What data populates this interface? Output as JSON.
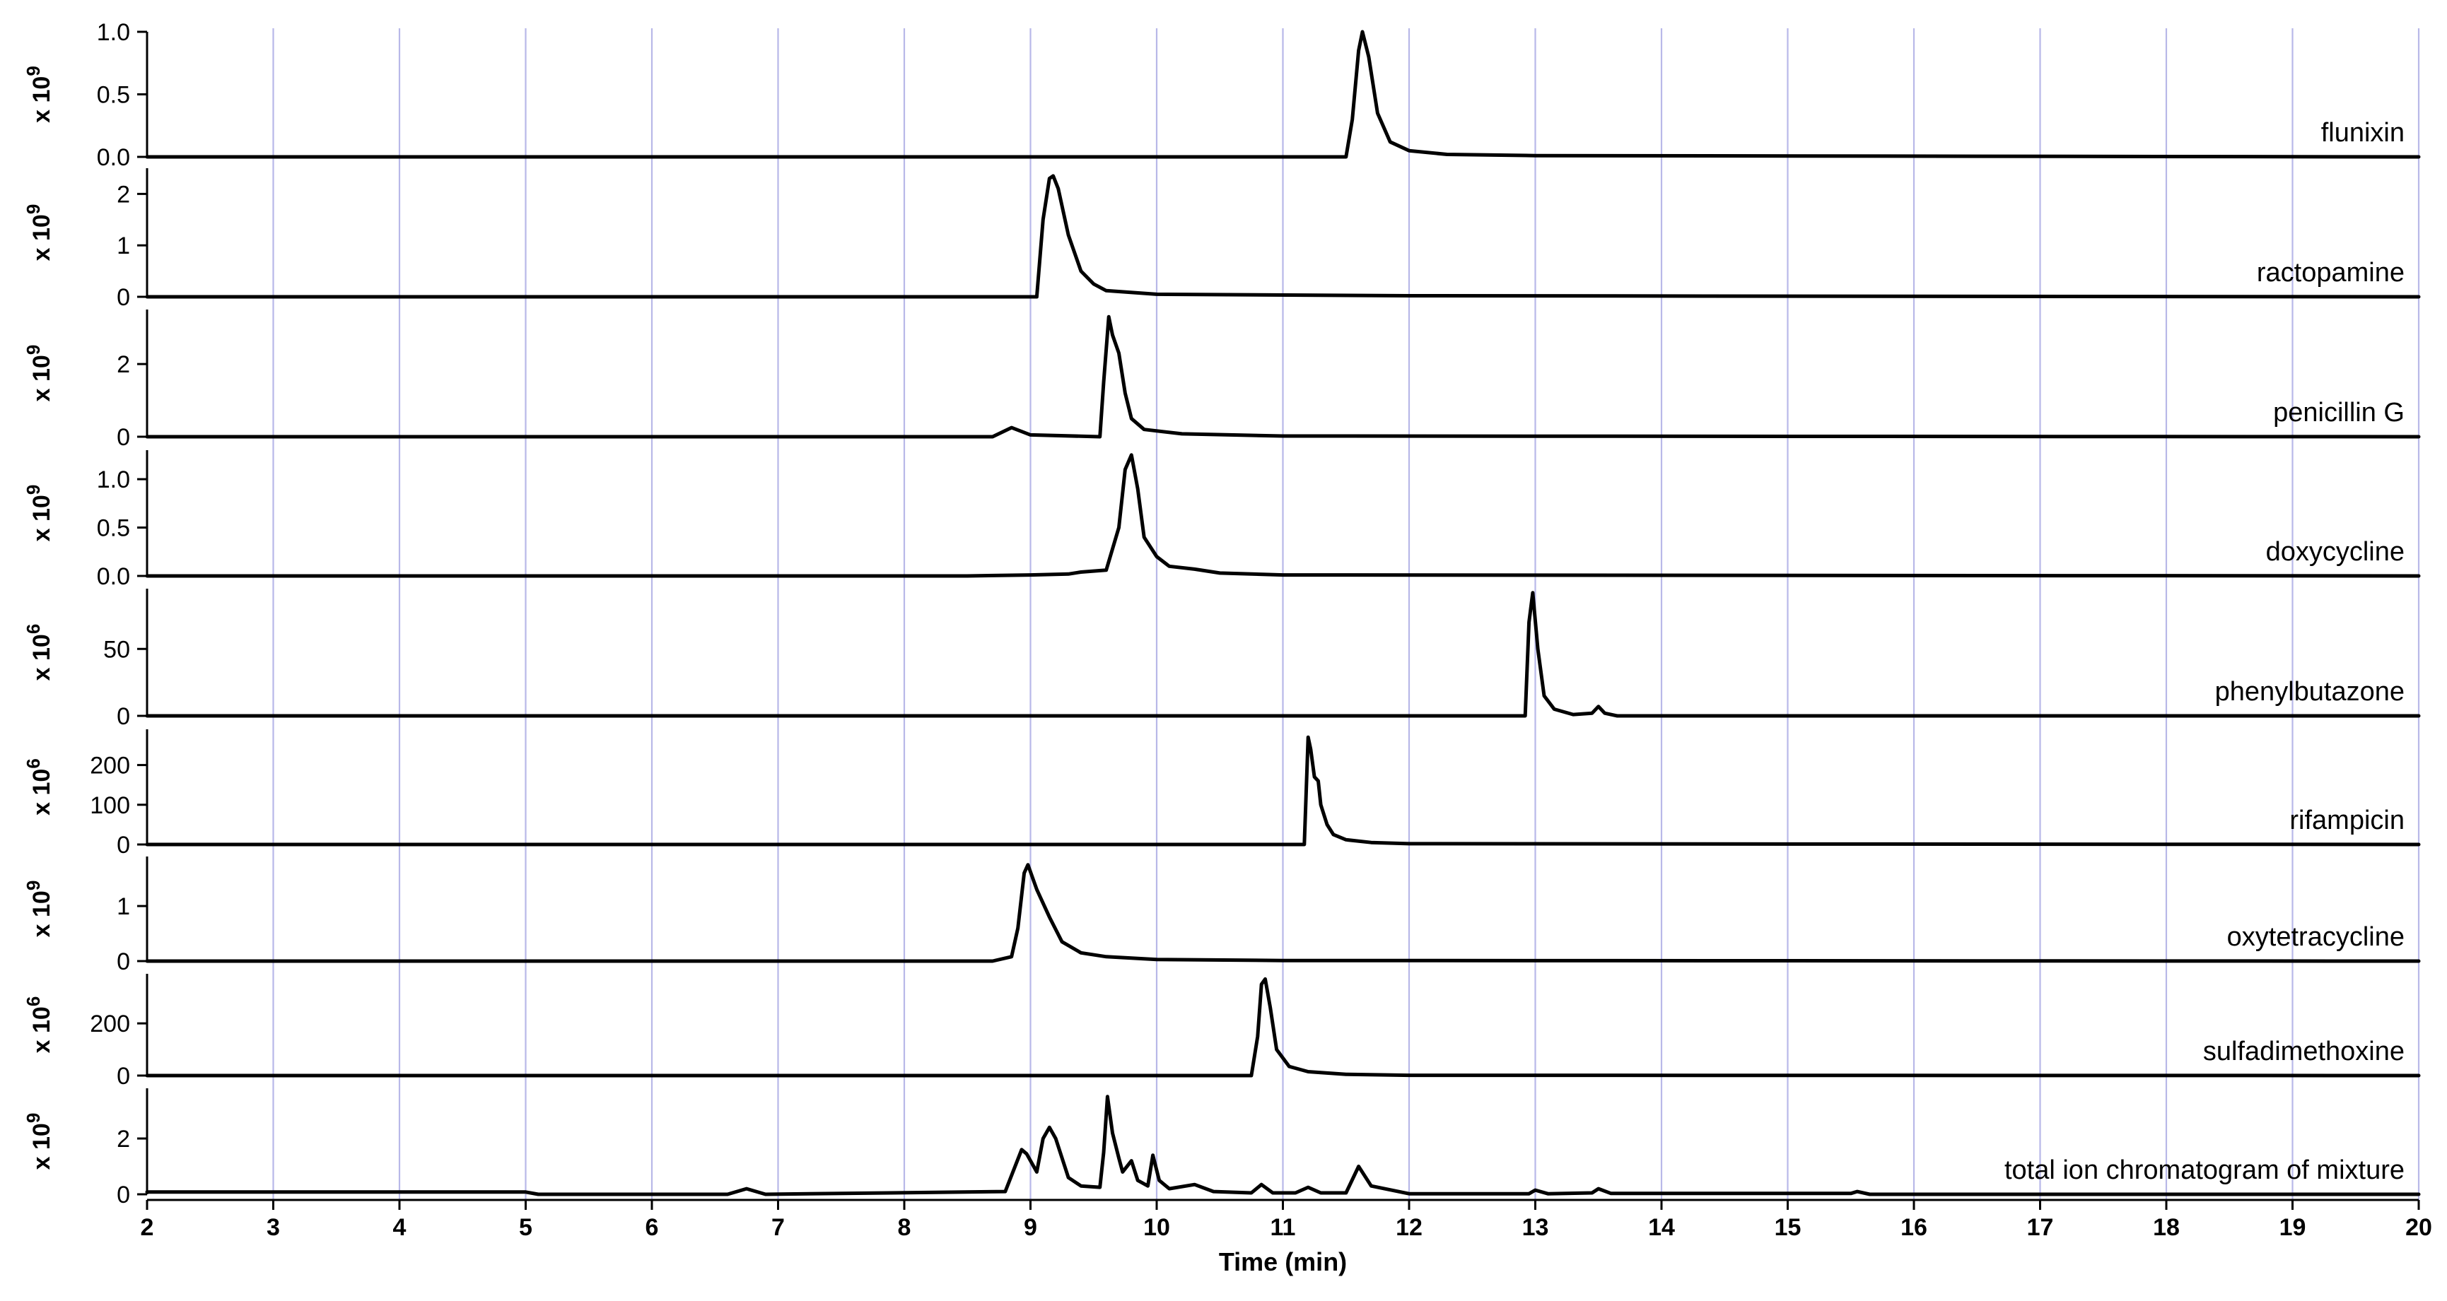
{
  "chart_data": {
    "type": "line",
    "xlabel": "Time (min)",
    "xlim": [
      2,
      20
    ],
    "x_ticks": [
      "2",
      "3",
      "4",
      "5",
      "6",
      "7",
      "8",
      "9",
      "10",
      "11",
      "12",
      "13",
      "14",
      "15",
      "16",
      "17",
      "18",
      "19",
      "20"
    ],
    "grid": "vertical",
    "colors": {
      "line": "#000000",
      "grid": "#b8b8e8",
      "axis": "#000000"
    },
    "panels": [
      {
        "name": "flunixin",
        "scale_label": "x 10",
        "scale_exp": "9",
        "ylim": [
          0,
          1.0
        ],
        "yticks": [
          "1.0",
          "0.5",
          "0.0"
        ],
        "series": {
          "x": [
            2.0,
            11.5,
            11.55,
            11.6,
            11.63,
            11.68,
            11.75,
            11.85,
            12.0,
            12.3,
            13.0,
            20.0
          ],
          "y": [
            0.0,
            0.0,
            0.3,
            0.85,
            1.0,
            0.8,
            0.35,
            0.12,
            0.05,
            0.02,
            0.01,
            0.0
          ]
        }
      },
      {
        "name": "ractopamine",
        "scale_label": "x 10",
        "scale_exp": "9",
        "ylim": [
          0,
          2.5
        ],
        "yticks": [
          "2",
          "1",
          "0"
        ],
        "series": {
          "x": [
            2.0,
            9.05,
            9.1,
            9.15,
            9.18,
            9.22,
            9.3,
            9.4,
            9.5,
            9.6,
            10.0,
            12.0,
            20.0
          ],
          "y": [
            0.0,
            0.0,
            1.5,
            2.3,
            2.35,
            2.1,
            1.2,
            0.5,
            0.25,
            0.12,
            0.05,
            0.02,
            0.0
          ]
        }
      },
      {
        "name": "penicillin G",
        "scale_label": "x 10",
        "scale_exp": "9",
        "ylim": [
          0,
          3.5
        ],
        "yticks": [
          "2",
          "0"
        ],
        "series": {
          "x": [
            2.0,
            8.7,
            8.85,
            9.0,
            9.55,
            9.58,
            9.62,
            9.65,
            9.7,
            9.75,
            9.8,
            9.9,
            10.2,
            11.0,
            20.0
          ],
          "y": [
            0.0,
            0.0,
            0.25,
            0.05,
            0.0,
            1.5,
            3.3,
            2.8,
            2.3,
            1.2,
            0.5,
            0.2,
            0.08,
            0.02,
            0.0
          ]
        }
      },
      {
        "name": "doxycycline",
        "scale_label": "x 10",
        "scale_exp": "9",
        "ylim": [
          0,
          1.3
        ],
        "yticks": [
          "1.0",
          "0.5",
          "0.0"
        ],
        "series": {
          "x": [
            2.0,
            8.5,
            9.0,
            9.3,
            9.4,
            9.6,
            9.7,
            9.75,
            9.8,
            9.85,
            9.9,
            10.0,
            10.1,
            10.3,
            10.5,
            11.0,
            20.0
          ],
          "y": [
            0.0,
            0.0,
            0.01,
            0.02,
            0.04,
            0.06,
            0.5,
            1.1,
            1.25,
            0.9,
            0.4,
            0.2,
            0.1,
            0.07,
            0.03,
            0.01,
            0.0
          ]
        }
      },
      {
        "name": "phenylbutazone",
        "scale_label": "x 10",
        "scale_exp": "6",
        "ylim": [
          0,
          95
        ],
        "yticks": [
          "50",
          "0"
        ],
        "series": {
          "x": [
            2.0,
            12.5,
            12.92,
            12.95,
            12.98,
            13.02,
            13.07,
            13.15,
            13.3,
            13.45,
            13.5,
            13.55,
            13.65,
            20.0
          ],
          "y": [
            0.0,
            0.0,
            0.0,
            70,
            92,
            50,
            15,
            5,
            1,
            2,
            7,
            2,
            0,
            0.0
          ]
        }
      },
      {
        "name": "rifampicin",
        "scale_label": "x 10",
        "scale_exp": "6",
        "ylim": [
          0,
          290
        ],
        "yticks": [
          "200",
          "100",
          "0"
        ],
        "series": {
          "x": [
            2.0,
            11.17,
            11.2,
            11.22,
            11.25,
            11.28,
            11.3,
            11.35,
            11.4,
            11.5,
            11.7,
            12.0,
            20.0
          ],
          "y": [
            0.0,
            0.0,
            270,
            240,
            170,
            160,
            100,
            50,
            25,
            12,
            5,
            2,
            0.0
          ]
        }
      },
      {
        "name": "oxytetracycline",
        "scale_label": "x 10",
        "scale_exp": "9",
        "ylim": [
          0,
          1.9
        ],
        "yticks": [
          "1",
          "0"
        ],
        "series": {
          "x": [
            2.0,
            8.7,
            8.85,
            8.9,
            8.95,
            8.98,
            9.05,
            9.15,
            9.25,
            9.4,
            9.6,
            10.0,
            11.0,
            20.0
          ],
          "y": [
            0.0,
            0.0,
            0.08,
            0.6,
            1.6,
            1.75,
            1.3,
            0.8,
            0.35,
            0.15,
            0.08,
            0.03,
            0.01,
            0.0
          ]
        }
      },
      {
        "name": "sulfadimethoxine",
        "scale_label": "x 10",
        "scale_exp": "6",
        "ylim": [
          0,
          390
        ],
        "yticks": [
          "200",
          "0"
        ],
        "series": {
          "x": [
            2.0,
            10.75,
            10.8,
            10.83,
            10.86,
            10.9,
            10.95,
            11.05,
            11.2,
            11.5,
            12.0,
            20.0
          ],
          "y": [
            0.0,
            0.0,
            150,
            350,
            370,
            260,
            100,
            35,
            15,
            5,
            1,
            0.0
          ]
        }
      },
      {
        "name": "total ion chromatogram of mixture",
        "scale_label": "x 10",
        "scale_exp": "9",
        "ylim": [
          0,
          3.8
        ],
        "yticks": [
          "2",
          "0"
        ],
        "series": {
          "x": [
            2.0,
            5.0,
            5.1,
            6.6,
            6.75,
            6.9,
            8.8,
            8.93,
            8.97,
            9.05,
            9.1,
            9.15,
            9.2,
            9.3,
            9.4,
            9.55,
            9.58,
            9.61,
            9.65,
            9.7,
            9.73,
            9.8,
            9.85,
            9.93,
            9.97,
            10.02,
            10.1,
            10.3,
            10.45,
            10.75,
            10.83,
            10.92,
            11.1,
            11.2,
            11.3,
            11.5,
            11.6,
            11.7,
            12.0,
            12.95,
            13.0,
            13.1,
            13.45,
            13.5,
            13.6,
            15.5,
            15.55,
            15.65,
            20.0
          ],
          "y": [
            0.08,
            0.08,
            0.0,
            0.0,
            0.2,
            0.0,
            0.1,
            1.6,
            1.45,
            0.8,
            2.0,
            2.4,
            2.0,
            0.6,
            0.3,
            0.25,
            1.5,
            3.5,
            2.2,
            1.3,
            0.8,
            1.2,
            0.5,
            0.3,
            1.4,
            0.5,
            0.2,
            0.35,
            0.1,
            0.05,
            0.35,
            0.05,
            0.05,
            0.25,
            0.05,
            0.05,
            1.0,
            0.3,
            0.02,
            0.02,
            0.15,
            0.02,
            0.05,
            0.2,
            0.03,
            0.03,
            0.1,
            0.0,
            0.0
          ]
        }
      }
    ]
  }
}
